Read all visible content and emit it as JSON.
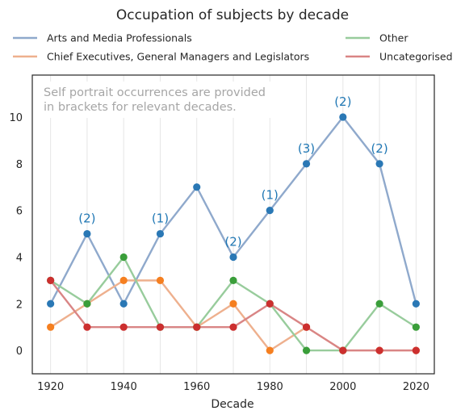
{
  "chart_data": {
    "type": "line",
    "title": "Occupation of subjects by decade",
    "xlabel": "Decade",
    "ylabel": "",
    "x": [
      1920,
      1930,
      1940,
      1950,
      1960,
      1970,
      1980,
      1990,
      2000,
      2010,
      2020
    ],
    "x_ticks": [
      "1920",
      "1940",
      "1960",
      "1980",
      "2000",
      "2020"
    ],
    "y_ticks": [
      "0",
      "2",
      "4",
      "6",
      "8",
      "10"
    ],
    "xlim": [
      1915,
      2025
    ],
    "ylim": [
      -1,
      11.8
    ],
    "grid": "vertical",
    "legend_position": "top, above plot",
    "series": [
      {
        "name": "Arts and Media Professionals",
        "line_color": "#8fa9cc",
        "marker_color": "#2a78b5",
        "values": [
          2,
          5,
          2,
          5,
          7,
          4,
          6,
          8,
          10,
          8,
          2
        ]
      },
      {
        "name": "Chief Executives, General Managers and Legislators",
        "line_color": "#eeb08e",
        "marker_color": "#f57f20",
        "values": [
          1,
          2,
          3,
          3,
          1,
          2,
          0,
          1,
          0,
          0,
          0
        ]
      },
      {
        "name": "Other",
        "line_color": "#98cc9c",
        "marker_color": "#3a9e3a",
        "values": [
          3,
          2,
          4,
          1,
          1,
          3,
          2,
          0,
          0,
          2,
          1
        ]
      },
      {
        "name": "Uncategorised",
        "line_color": "#d98585",
        "marker_color": "#cc2f2f",
        "values": [
          3,
          1,
          1,
          1,
          1,
          1,
          2,
          1,
          0,
          0,
          0
        ]
      }
    ],
    "annotations": [
      {
        "x": 1930,
        "y": 5,
        "text": "(2)"
      },
      {
        "x": 1950,
        "y": 5,
        "text": "(1)"
      },
      {
        "x": 1970,
        "y": 4,
        "text": "(2)"
      },
      {
        "x": 1980,
        "y": 6,
        "text": "(1)"
      },
      {
        "x": 1990,
        "y": 8,
        "text": "(3)"
      },
      {
        "x": 2000,
        "y": 10,
        "text": "(2)"
      },
      {
        "x": 2010,
        "y": 8,
        "text": "(2)"
      }
    ],
    "note_lines": [
      "Self portrait occurrences are provided",
      "in brackets for relevant decades."
    ]
  }
}
